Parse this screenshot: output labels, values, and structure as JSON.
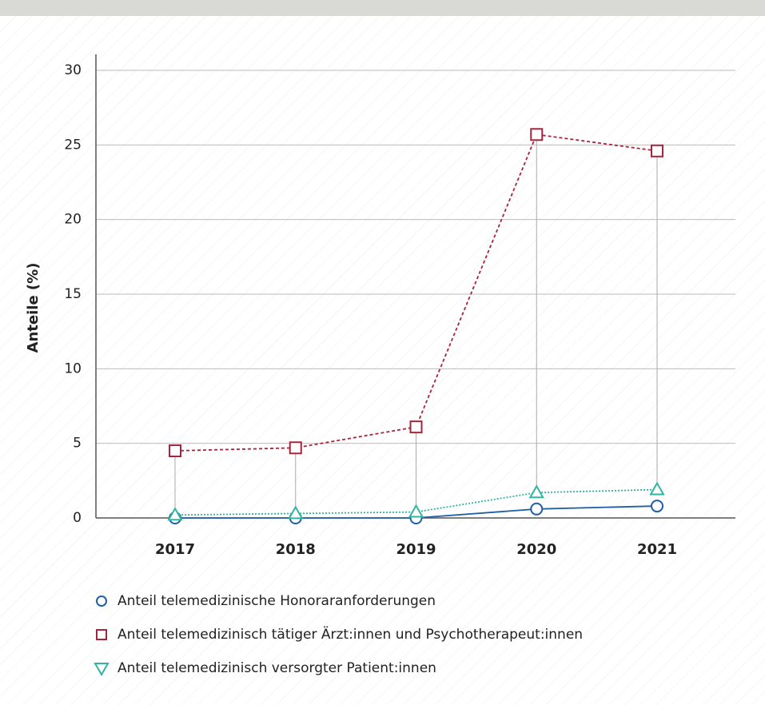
{
  "chart_data": {
    "type": "line",
    "y_label": "Anteile (%)",
    "categories": [
      "2017",
      "2018",
      "2019",
      "2020",
      "2021"
    ],
    "series": [
      {
        "name": "Anteil telemedizinische Honoraranforderungen",
        "color": "#1f5fa8",
        "line": "solid",
        "marker": "circle",
        "values": [
          0,
          0,
          0,
          0.6,
          0.8
        ]
      },
      {
        "name": "Anteil telemedizinisch tätiger Ärzt:innen und Psychotherapeut:innen",
        "color": "#a8243d",
        "line": "dashed",
        "marker": "square",
        "values": [
          4.5,
          4.7,
          6.1,
          25.7,
          24.6
        ]
      },
      {
        "name": "Anteil telemedizinisch versorgter Patient:innen",
        "color": "#2fb5a0",
        "line": "dotted",
        "marker": "triangle",
        "values": [
          0.2,
          0.3,
          0.4,
          1.7,
          1.9
        ]
      }
    ],
    "ylim": [
      0,
      30
    ],
    "yticks": [
      0,
      5,
      10,
      15,
      20,
      25,
      30
    ],
    "grid": true
  }
}
